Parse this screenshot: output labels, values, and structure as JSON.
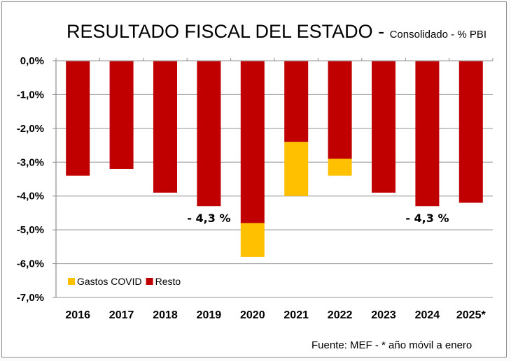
{
  "chart_data": {
    "type": "bar",
    "stacked": true,
    "title": "RESULTADO FISCAL DEL ESTADO - ",
    "subtitle": "Consolidado - % PBI",
    "xlabel": "",
    "ylabel": "",
    "categories": [
      "2016",
      "2017",
      "2018",
      "2019",
      "2020",
      "2021",
      "2022",
      "2023",
      "2024",
      "2025*"
    ],
    "series": [
      {
        "name": "Resto",
        "color": "#C00000",
        "values": [
          -3.4,
          -3.2,
          -3.9,
          -4.3,
          -4.8,
          -2.4,
          -2.9,
          -3.9,
          -4.3,
          -4.2
        ]
      },
      {
        "name": "Gastos COVID",
        "color": "#FFC000",
        "values": [
          0,
          0,
          0,
          0,
          -1.0,
          -1.6,
          -0.5,
          0,
          0,
          0
        ]
      }
    ],
    "ylim": [
      -7.0,
      0.0
    ],
    "yticks": [
      0.0,
      -1.0,
      -2.0,
      -3.0,
      -4.0,
      -5.0,
      -6.0,
      -7.0
    ],
    "ytick_labels": [
      "0,0%",
      "-1,0%",
      "-2,0%",
      "-3,0%",
      "-4,0%",
      "-5,0%",
      "-6,0%",
      "-7,0%"
    ],
    "grid": true,
    "legend": {
      "position": "bottom-left",
      "entries": [
        "Gastos COVID",
        "Resto"
      ]
    },
    "annotations": [
      {
        "text": "- 4,3 %",
        "category": "2019"
      },
      {
        "text": "- 4,3 %",
        "category": "2024"
      }
    ],
    "source": "Fuente: MEF - * año móvil a enero"
  }
}
